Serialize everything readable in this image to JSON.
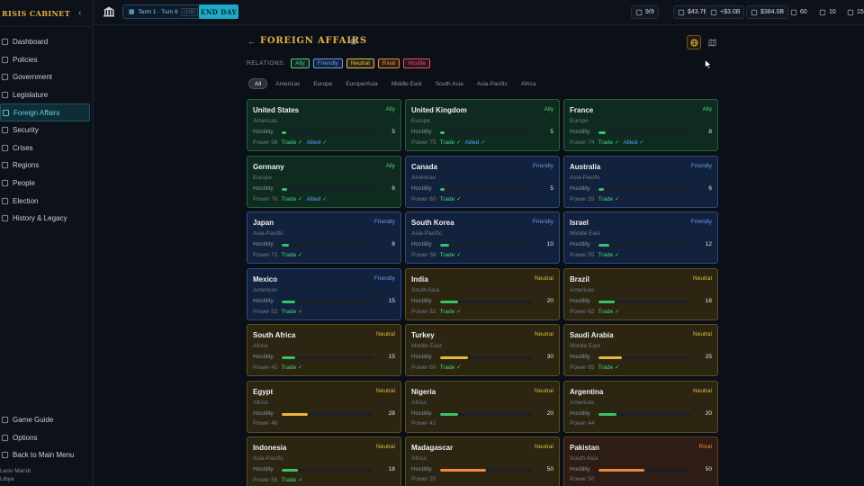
{
  "sidebar": {
    "brand": "RISIS CABINET",
    "items": [
      {
        "label": "Dashboard",
        "icon": "dashboard-icon"
      },
      {
        "label": "Policies",
        "icon": "document-icon"
      },
      {
        "label": "Government",
        "icon": "building-icon"
      },
      {
        "label": "Legislature",
        "icon": "gavel-icon"
      },
      {
        "label": "Foreign Affairs",
        "icon": "globe-icon"
      },
      {
        "label": "Security",
        "icon": "shield-icon"
      },
      {
        "label": "Crises",
        "icon": "alert-icon"
      },
      {
        "label": "Regions",
        "icon": "map-pin-icon"
      },
      {
        "label": "People",
        "icon": "people-icon"
      },
      {
        "label": "Election",
        "icon": "ballot-icon"
      },
      {
        "label": "History & Legacy",
        "icon": "history-icon"
      }
    ],
    "bottom": [
      {
        "label": "Game Guide",
        "icon": "book-icon"
      },
      {
        "label": "Options",
        "icon": "gear-icon"
      },
      {
        "label": "Back to Main Menu",
        "icon": "logout-icon"
      }
    ],
    "user": {
      "name": "Leon Marsh",
      "country": "Libya"
    }
  },
  "topbar": {
    "term": "Term 1 · Turn 6",
    "term_sub": "(1/8)",
    "end_day": "END DAY",
    "stats": [
      {
        "icon": "approval-icon",
        "value": "9/9",
        "color": "#c9cfd9"
      },
      {
        "icon": "money-icon",
        "value": "$43.7B",
        "color": "#d8dde6"
      },
      {
        "icon": "trend-up-icon",
        "value": "+$3.0B",
        "color": "#d8dde6"
      },
      {
        "icon": "coin-icon",
        "value": "$384.0B",
        "color": "#d8dde6"
      },
      {
        "icon": "stability-icon",
        "value": "60",
        "color": "#d8dde6"
      },
      {
        "icon": "clock-icon",
        "value": "10",
        "color": "#d8dde6"
      },
      {
        "icon": "fire-icon",
        "value": "15",
        "color": "#d8dde6"
      }
    ]
  },
  "page": {
    "title": "FOREIGN AFFAIRS",
    "relations_label": "RELATIONS:",
    "relations": [
      {
        "label": "Ally",
        "color": "#4ad17a"
      },
      {
        "label": "Friendly",
        "color": "#5e9cf5"
      },
      {
        "label": "Neutral",
        "color": "#e8b83a"
      },
      {
        "label": "Rival",
        "color": "#ef8a3c"
      },
      {
        "label": "Hostile",
        "color": "#ef4a5a"
      }
    ],
    "filters": [
      "All",
      "Americas",
      "Europe",
      "Europe/Asia",
      "Middle East",
      "South Asia",
      "Asia-Pacific",
      "Africa"
    ],
    "active_filter": "All",
    "hostility_label": "Hostility",
    "power_label": "Power",
    "trade_label": "Trade ✓",
    "allied_label": "Allied ✓"
  },
  "countries": [
    {
      "name": "United States",
      "relation": "Ally",
      "region": "Americas",
      "hostility": 5,
      "power": 98,
      "trade": true,
      "allied": true
    },
    {
      "name": "United Kingdom",
      "relation": "Ally",
      "region": "Europe",
      "hostility": 5,
      "power": 75,
      "trade": true,
      "allied": true
    },
    {
      "name": "France",
      "relation": "Ally",
      "region": "Europe",
      "hostility": 8,
      "power": 74,
      "trade": true,
      "allied": true
    },
    {
      "name": "Germany",
      "relation": "Ally",
      "region": "Europe",
      "hostility": 6,
      "power": 76,
      "trade": true,
      "allied": true
    },
    {
      "name": "Canada",
      "relation": "Friendly",
      "region": "Americas",
      "hostility": 5,
      "power": 60,
      "trade": true,
      "allied": false
    },
    {
      "name": "Australia",
      "relation": "Friendly",
      "region": "Asia-Pacific",
      "hostility": 6,
      "power": 55,
      "trade": true,
      "allied": false
    },
    {
      "name": "Japan",
      "relation": "Friendly",
      "region": "Asia-Pacific",
      "hostility": 8,
      "power": 72,
      "trade": true,
      "allied": false
    },
    {
      "name": "South Korea",
      "relation": "Friendly",
      "region": "Asia-Pacific",
      "hostility": 10,
      "power": 58,
      "trade": true,
      "allied": false
    },
    {
      "name": "Israel",
      "relation": "Friendly",
      "region": "Middle East",
      "hostility": 12,
      "power": 55,
      "trade": true,
      "allied": false
    },
    {
      "name": "Mexico",
      "relation": "Friendly",
      "region": "Americas",
      "hostility": 15,
      "power": 52,
      "trade": true,
      "allied": false
    },
    {
      "name": "India",
      "relation": "Neutral",
      "region": "South Asia",
      "hostility": 20,
      "power": 82,
      "trade": true,
      "allied": false
    },
    {
      "name": "Brazil",
      "relation": "Neutral",
      "region": "Americas",
      "hostility": 18,
      "power": 62,
      "trade": true,
      "allied": false
    },
    {
      "name": "South Africa",
      "relation": "Neutral",
      "region": "Africa",
      "hostility": 15,
      "power": 45,
      "trade": true,
      "allied": false
    },
    {
      "name": "Turkey",
      "relation": "Neutral",
      "region": "Middle East",
      "hostility": 30,
      "power": 60,
      "trade": true,
      "allied": false
    },
    {
      "name": "Saudi Arabia",
      "relation": "Neutral",
      "region": "Middle East",
      "hostility": 25,
      "power": 65,
      "trade": true,
      "allied": false
    },
    {
      "name": "Egypt",
      "relation": "Neutral",
      "region": "Africa",
      "hostility": 28,
      "power": 48,
      "trade": false,
      "allied": false
    },
    {
      "name": "Nigeria",
      "relation": "Neutral",
      "region": "Africa",
      "hostility": 20,
      "power": 42,
      "trade": false,
      "allied": false
    },
    {
      "name": "Argentina",
      "relation": "Neutral",
      "region": "Americas",
      "hostility": 20,
      "power": 44,
      "trade": false,
      "allied": false
    },
    {
      "name": "Indonesia",
      "relation": "Neutral",
      "region": "Asia-Pacific",
      "hostility": 18,
      "power": 56,
      "trade": true,
      "allied": false
    },
    {
      "name": "Madagascar",
      "relation": "Neutral",
      "region": "Africa",
      "hostility": 50,
      "power": 20,
      "trade": false,
      "allied": false
    },
    {
      "name": "Pakistan",
      "relation": "Rival",
      "region": "South Asia",
      "hostility": 50,
      "power": 50,
      "trade": false,
      "allied": false
    }
  ]
}
